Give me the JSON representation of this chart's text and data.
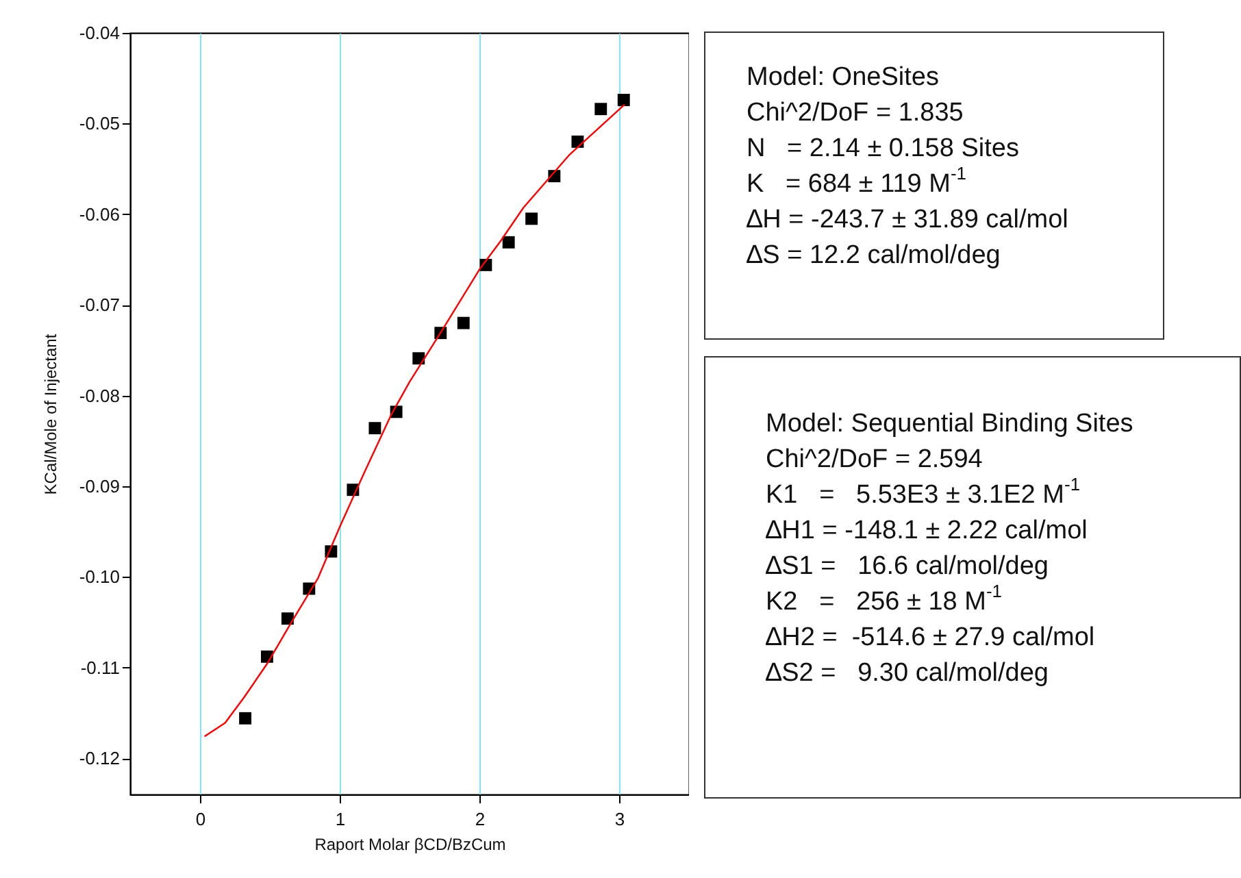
{
  "chart_data": {
    "type": "scatter",
    "xlabel": "Raport Molar βCD/BzCum",
    "ylabel": "KCal/Mole of Injectant",
    "xlim": [
      -0.5,
      3.5
    ],
    "xticks": [
      0,
      1,
      2,
      3
    ],
    "ylim": [
      -0.124,
      -0.04
    ],
    "yticks": [
      -0.12,
      -0.11,
      {
        "value": -0.1,
        "label": "-0.10"
      },
      -0.09,
      -0.08,
      -0.07,
      -0.06,
      -0.05,
      -0.04
    ],
    "grid": "x",
    "series": [
      {
        "marker": "square",
        "color": "#000000",
        "x": [
          0.324,
          0.48,
          0.627,
          0.781,
          0.938,
          1.095,
          1.252,
          1.405,
          1.565,
          1.722,
          1.886,
          2.046,
          2.209,
          2.373,
          2.536,
          2.703,
          2.869,
          3.033
        ],
        "values": [
          -0.1156,
          -0.1088,
          -0.1046,
          -0.1013,
          -0.0972,
          -0.0904,
          -0.0836,
          -0.0818,
          -0.0759,
          -0.0731,
          -0.072,
          -0.0656,
          -0.0631,
          -0.0605,
          -0.0558,
          -0.052,
          -0.0484,
          -0.0474
        ]
      },
      {
        "type": "line",
        "color": "#ff0000",
        "x": [
          0.033,
          0.18,
          0.32,
          0.484,
          0.647,
          0.843,
          1.0,
          1.17,
          1.366,
          1.5,
          1.725,
          2.0,
          2.15,
          2.314,
          2.641,
          3.039
        ],
        "values": [
          -0.1176,
          -0.1161,
          -0.1132,
          -0.1095,
          -0.1052,
          -0.1002,
          -0.0945,
          -0.0887,
          -0.0822,
          -0.0785,
          -0.073,
          -0.0661,
          -0.063,
          -0.0593,
          -0.0535,
          -0.0479
        ]
      }
    ],
    "annotations": [
      "Model: OneSites\nChi^2/DoF = 1.835\nN   = 2.14 ± 0.158 Sites\nK   = 684 ± 119 M$^{-1}$\n∆H = -243.7 ± 31.89 cal/mol\n∆S = 12.2 cal/mol/deg",
      "Model: Sequential Binding Sites\nChi^2/DoF = 2.594\nK1   =   5.53E3 ± 3.1E2 M$^{-1}$\n∆H1 = -148.1 ± 2.22 cal/mol\n∆S1 =   16.6 cal/mol/deg\nK2   =   256 ± 18 M$^{-1}$\n∆H2 =  -514.6 ± 27.9 cal/mol\n∆S2 =   9.30 cal/mol/deg"
    ]
  }
}
